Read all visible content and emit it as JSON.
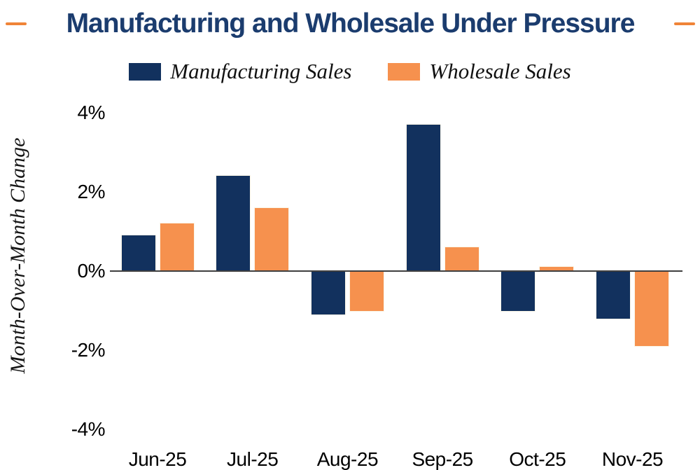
{
  "title": {
    "text": "Manufacturing and Wholesale Under Pressure"
  },
  "colors": {
    "navy": "#12315E",
    "orange": "#F6914E",
    "title_navy": "#1B3C6E",
    "dash_orange": "#F08438",
    "axis_line": "#3F3F3F"
  },
  "legend": {
    "items": [
      {
        "label": "Manufacturing Sales",
        "color_key": "navy"
      },
      {
        "label": "Wholesale Sales",
        "color_key": "orange"
      }
    ]
  },
  "y_axis": {
    "title": "Month-Over-Month Change",
    "ticks": [
      {
        "label": "4%",
        "value": 4
      },
      {
        "label": "2%",
        "value": 2
      },
      {
        "label": "0%",
        "value": 0
      },
      {
        "label": "-2%",
        "value": -2
      },
      {
        "label": "-4%",
        "value": -4
      }
    ]
  },
  "chart_data": {
    "type": "bar",
    "title": "Manufacturing and Wholesale Under Pressure",
    "categories": [
      "Jun-25",
      "Jul-25",
      "Aug-25",
      "Sep-25",
      "Oct-25",
      "Nov-25"
    ],
    "series": [
      {
        "name": "Manufacturing Sales",
        "color": "#12315E",
        "values": [
          0.9,
          2.4,
          -1.1,
          3.7,
          -1.0,
          -1.2
        ]
      },
      {
        "name": "Wholesale Sales",
        "color": "#F6914E",
        "values": [
          1.2,
          1.6,
          -1.0,
          0.6,
          0.1,
          -1.9
        ]
      }
    ],
    "ylabel": "Month-Over-Month Change",
    "ylim": [
      -4,
      4
    ],
    "ytick_values": [
      4,
      2,
      0,
      -2,
      -4
    ],
    "grid": false,
    "legend_position": "top-center"
  }
}
